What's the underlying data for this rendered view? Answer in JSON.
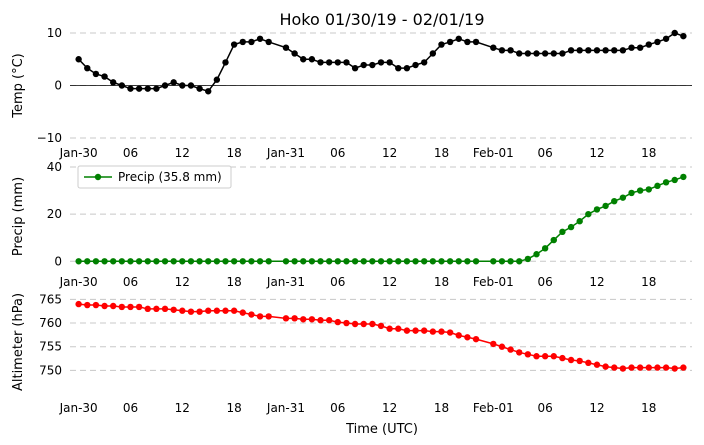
{
  "chart_data": {
    "type": "line",
    "title": "Hoko 01/30/19 - 02/01/19",
    "xlabel": "Time (UTC)",
    "x_start": "2019-01-30T00:00",
    "step_minutes": 60,
    "xticks": [
      {
        "hour": 0,
        "label": "Jan-30"
      },
      {
        "hour": 6,
        "label": "06"
      },
      {
        "hour": 12,
        "label": "12"
      },
      {
        "hour": 18,
        "label": "18"
      },
      {
        "hour": 24,
        "label": "Jan-31"
      },
      {
        "hour": 30,
        "label": "06"
      },
      {
        "hour": 36,
        "label": "12"
      },
      {
        "hour": 42,
        "label": "18"
      },
      {
        "hour": 48,
        "label": "Feb-01"
      },
      {
        "hour": 54,
        "label": "06"
      },
      {
        "hour": 60,
        "label": "12"
      },
      {
        "hour": 66,
        "label": "18"
      }
    ],
    "x_range_hours": [
      -1,
      71
    ],
    "panels": [
      {
        "ylabel": "Temp (°C)",
        "ylim": [
          -10,
          10
        ],
        "yticks": [
          -10,
          0,
          10
        ],
        "zero_line": true,
        "color": "#000000",
        "legend": null,
        "series": [
          {
            "x": 0,
            "y": 5.0
          },
          {
            "x": 1,
            "y": 3.3
          },
          {
            "x": 2,
            "y": 2.2
          },
          {
            "x": 3,
            "y": 1.7
          },
          {
            "x": 4,
            "y": 0.6
          },
          {
            "x": 5,
            "y": 0.0
          },
          {
            "x": 6,
            "y": -0.6
          },
          {
            "x": 7,
            "y": -0.6
          },
          {
            "x": 8,
            "y": -0.6
          },
          {
            "x": 9,
            "y": -0.6
          },
          {
            "x": 10,
            "y": 0.0
          },
          {
            "x": 11,
            "y": 0.6
          },
          {
            "x": 12,
            "y": 0.0
          },
          {
            "x": 13,
            "y": 0.0
          },
          {
            "x": 14,
            "y": -0.6
          },
          {
            "x": 15,
            "y": -1.1
          },
          {
            "x": 16,
            "y": 1.1
          },
          {
            "x": 17,
            "y": 4.4
          },
          {
            "x": 18,
            "y": 7.8
          },
          {
            "x": 19,
            "y": 8.3
          },
          {
            "x": 20,
            "y": 8.3
          },
          {
            "x": 21,
            "y": 8.9
          },
          {
            "x": 22,
            "y": 8.3
          },
          {
            "x": 24,
            "y": 7.2
          },
          {
            "x": 25,
            "y": 6.1
          },
          {
            "x": 26,
            "y": 5.0
          },
          {
            "x": 27,
            "y": 5.0
          },
          {
            "x": 28,
            "y": 4.4
          },
          {
            "x": 29,
            "y": 4.4
          },
          {
            "x": 30,
            "y": 4.4
          },
          {
            "x": 31,
            "y": 4.4
          },
          {
            "x": 32,
            "y": 3.3
          },
          {
            "x": 33,
            "y": 3.9
          },
          {
            "x": 34,
            "y": 3.9
          },
          {
            "x": 35,
            "y": 4.4
          },
          {
            "x": 36,
            "y": 4.4
          },
          {
            "x": 37,
            "y": 3.3
          },
          {
            "x": 38,
            "y": 3.3
          },
          {
            "x": 39,
            "y": 3.9
          },
          {
            "x": 40,
            "y": 4.4
          },
          {
            "x": 41,
            "y": 6.1
          },
          {
            "x": 42,
            "y": 7.8
          },
          {
            "x": 43,
            "y": 8.3
          },
          {
            "x": 44,
            "y": 8.9
          },
          {
            "x": 45,
            "y": 8.3
          },
          {
            "x": 46,
            "y": 8.3
          },
          {
            "x": 48,
            "y": 7.2
          },
          {
            "x": 49,
            "y": 6.7
          },
          {
            "x": 50,
            "y": 6.7
          },
          {
            "x": 51,
            "y": 6.1
          },
          {
            "x": 52,
            "y": 6.1
          },
          {
            "x": 53,
            "y": 6.1
          },
          {
            "x": 54,
            "y": 6.1
          },
          {
            "x": 55,
            "y": 6.1
          },
          {
            "x": 56,
            "y": 6.1
          },
          {
            "x": 57,
            "y": 6.7
          },
          {
            "x": 58,
            "y": 6.7
          },
          {
            "x": 59,
            "y": 6.7
          },
          {
            "x": 60,
            "y": 6.7
          },
          {
            "x": 61,
            "y": 6.7
          },
          {
            "x": 62,
            "y": 6.7
          },
          {
            "x": 63,
            "y": 6.7
          },
          {
            "x": 64,
            "y": 7.2
          },
          {
            "x": 65,
            "y": 7.2
          },
          {
            "x": 66,
            "y": 7.8
          },
          {
            "x": 67,
            "y": 8.3
          },
          {
            "x": 68,
            "y": 8.9
          },
          {
            "x": 69,
            "y": 10.0
          },
          {
            "x": 70,
            "y": 9.4
          }
        ]
      },
      {
        "ylabel": "Precip (mm)",
        "ylim": [
          -2,
          40
        ],
        "yticks": [
          0,
          20,
          40
        ],
        "zero_line": false,
        "color": "#008000",
        "legend": {
          "label": "Precip (35.8 mm)",
          "placement": "upper-left"
        },
        "series": [
          {
            "x": 0,
            "y": 0
          },
          {
            "x": 1,
            "y": 0
          },
          {
            "x": 2,
            "y": 0
          },
          {
            "x": 3,
            "y": 0
          },
          {
            "x": 4,
            "y": 0
          },
          {
            "x": 5,
            "y": 0
          },
          {
            "x": 6,
            "y": 0
          },
          {
            "x": 7,
            "y": 0
          },
          {
            "x": 8,
            "y": 0
          },
          {
            "x": 9,
            "y": 0
          },
          {
            "x": 10,
            "y": 0
          },
          {
            "x": 11,
            "y": 0
          },
          {
            "x": 12,
            "y": 0
          },
          {
            "x": 13,
            "y": 0
          },
          {
            "x": 14,
            "y": 0
          },
          {
            "x": 15,
            "y": 0
          },
          {
            "x": 16,
            "y": 0
          },
          {
            "x": 17,
            "y": 0
          },
          {
            "x": 18,
            "y": 0
          },
          {
            "x": 19,
            "y": 0
          },
          {
            "x": 20,
            "y": 0
          },
          {
            "x": 21,
            "y": 0
          },
          {
            "x": 22,
            "y": 0
          },
          {
            "x": 24,
            "y": 0
          },
          {
            "x": 25,
            "y": 0
          },
          {
            "x": 26,
            "y": 0
          },
          {
            "x": 27,
            "y": 0
          },
          {
            "x": 28,
            "y": 0
          },
          {
            "x": 29,
            "y": 0
          },
          {
            "x": 30,
            "y": 0
          },
          {
            "x": 31,
            "y": 0
          },
          {
            "x": 32,
            "y": 0
          },
          {
            "x": 33,
            "y": 0
          },
          {
            "x": 34,
            "y": 0
          },
          {
            "x": 35,
            "y": 0
          },
          {
            "x": 36,
            "y": 0
          },
          {
            "x": 37,
            "y": 0
          },
          {
            "x": 38,
            "y": 0
          },
          {
            "x": 39,
            "y": 0
          },
          {
            "x": 40,
            "y": 0
          },
          {
            "x": 41,
            "y": 0
          },
          {
            "x": 42,
            "y": 0
          },
          {
            "x": 43,
            "y": 0
          },
          {
            "x": 44,
            "y": 0
          },
          {
            "x": 45,
            "y": 0
          },
          {
            "x": 46,
            "y": 0
          },
          {
            "x": 48,
            "y": 0
          },
          {
            "x": 49,
            "y": 0
          },
          {
            "x": 50,
            "y": 0
          },
          {
            "x": 51,
            "y": 0
          },
          {
            "x": 52,
            "y": 1.0
          },
          {
            "x": 53,
            "y": 3.0
          },
          {
            "x": 54,
            "y": 5.5
          },
          {
            "x": 55,
            "y": 9.0
          },
          {
            "x": 56,
            "y": 12.5
          },
          {
            "x": 57,
            "y": 14.5
          },
          {
            "x": 58,
            "y": 17.0
          },
          {
            "x": 59,
            "y": 20.0
          },
          {
            "x": 60,
            "y": 22.0
          },
          {
            "x": 61,
            "y": 23.5
          },
          {
            "x": 62,
            "y": 25.5
          },
          {
            "x": 63,
            "y": 27.0
          },
          {
            "x": 64,
            "y": 29.0
          },
          {
            "x": 65,
            "y": 30.0
          },
          {
            "x": 66,
            "y": 30.5
          },
          {
            "x": 67,
            "y": 32.0
          },
          {
            "x": 68,
            "y": 33.5
          },
          {
            "x": 69,
            "y": 34.5
          },
          {
            "x": 70,
            "y": 35.8
          }
        ]
      },
      {
        "ylabel": "Altimeter (hPa)",
        "ylim": [
          746.5,
          765.5
        ],
        "yticks": [
          750,
          755,
          760,
          765
        ],
        "zero_line": false,
        "color": "#ff0000",
        "legend": null,
        "series": [
          {
            "x": 0,
            "y": 764.0
          },
          {
            "x": 1,
            "y": 763.8
          },
          {
            "x": 2,
            "y": 763.8
          },
          {
            "x": 3,
            "y": 763.6
          },
          {
            "x": 4,
            "y": 763.6
          },
          {
            "x": 5,
            "y": 763.4
          },
          {
            "x": 6,
            "y": 763.4
          },
          {
            "x": 7,
            "y": 763.4
          },
          {
            "x": 8,
            "y": 763.0
          },
          {
            "x": 9,
            "y": 763.0
          },
          {
            "x": 10,
            "y": 763.0
          },
          {
            "x": 11,
            "y": 762.8
          },
          {
            "x": 12,
            "y": 762.6
          },
          {
            "x": 13,
            "y": 762.4
          },
          {
            "x": 14,
            "y": 762.4
          },
          {
            "x": 15,
            "y": 762.6
          },
          {
            "x": 16,
            "y": 762.6
          },
          {
            "x": 17,
            "y": 762.6
          },
          {
            "x": 18,
            "y": 762.6
          },
          {
            "x": 19,
            "y": 762.2
          },
          {
            "x": 20,
            "y": 761.8
          },
          {
            "x": 21,
            "y": 761.4
          },
          {
            "x": 22,
            "y": 761.4
          },
          {
            "x": 24,
            "y": 761.0
          },
          {
            "x": 25,
            "y": 761.0
          },
          {
            "x": 26,
            "y": 760.8
          },
          {
            "x": 27,
            "y": 760.8
          },
          {
            "x": 28,
            "y": 760.6
          },
          {
            "x": 29,
            "y": 760.6
          },
          {
            "x": 30,
            "y": 760.2
          },
          {
            "x": 31,
            "y": 760.0
          },
          {
            "x": 32,
            "y": 759.8
          },
          {
            "x": 33,
            "y": 759.8
          },
          {
            "x": 34,
            "y": 759.8
          },
          {
            "x": 35,
            "y": 759.4
          },
          {
            "x": 36,
            "y": 758.8
          },
          {
            "x": 37,
            "y": 758.8
          },
          {
            "x": 38,
            "y": 758.4
          },
          {
            "x": 39,
            "y": 758.4
          },
          {
            "x": 40,
            "y": 758.4
          },
          {
            "x": 41,
            "y": 758.2
          },
          {
            "x": 42,
            "y": 758.2
          },
          {
            "x": 43,
            "y": 758.0
          },
          {
            "x": 44,
            "y": 757.4
          },
          {
            "x": 45,
            "y": 757.0
          },
          {
            "x": 46,
            "y": 756.6
          },
          {
            "x": 48,
            "y": 755.6
          },
          {
            "x": 49,
            "y": 755.0
          },
          {
            "x": 50,
            "y": 754.4
          },
          {
            "x": 51,
            "y": 753.8
          },
          {
            "x": 52,
            "y": 753.4
          },
          {
            "x": 53,
            "y": 753.0
          },
          {
            "x": 54,
            "y": 753.0
          },
          {
            "x": 55,
            "y": 753.0
          },
          {
            "x": 56,
            "y": 752.6
          },
          {
            "x": 57,
            "y": 752.2
          },
          {
            "x": 58,
            "y": 752.0
          },
          {
            "x": 59,
            "y": 751.6
          },
          {
            "x": 60,
            "y": 751.2
          },
          {
            "x": 61,
            "y": 750.8
          },
          {
            "x": 62,
            "y": 750.6
          },
          {
            "x": 63,
            "y": 750.4
          },
          {
            "x": 64,
            "y": 750.6
          },
          {
            "x": 65,
            "y": 750.6
          },
          {
            "x": 66,
            "y": 750.6
          },
          {
            "x": 67,
            "y": 750.6
          },
          {
            "x": 68,
            "y": 750.6
          },
          {
            "x": 69,
            "y": 750.4
          },
          {
            "x": 70,
            "y": 750.6
          }
        ]
      }
    ]
  }
}
